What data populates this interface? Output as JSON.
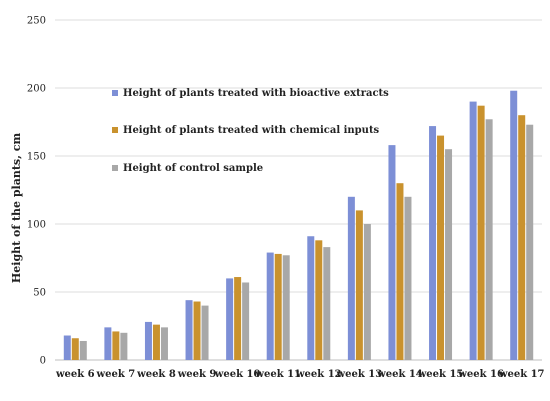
{
  "chart_data": {
    "type": "bar",
    "title": "",
    "xlabel": "",
    "ylabel": "Height of the plants, cm",
    "ylim": [
      0,
      250
    ],
    "yticks": [
      0,
      50,
      100,
      150,
      200,
      250
    ],
    "grid": true,
    "legend_position": "inside-top-left",
    "categories": [
      "week 6",
      "week 7",
      "week 8",
      "week 9",
      "week 10",
      "week 11",
      "week 12",
      "week 13",
      "week 14",
      "week 15",
      "week 16",
      "week 17"
    ],
    "series": [
      {
        "name": "Height of plants treated with bioactive extracts",
        "color": "#7d8fd6",
        "values": [
          18,
          24,
          28,
          44,
          60,
          79,
          91,
          120,
          158,
          172,
          190,
          198
        ]
      },
      {
        "name": "Height of plants treated with chemical inputs",
        "color": "#c9922e",
        "values": [
          16,
          21,
          26,
          43,
          61,
          78,
          88,
          110,
          130,
          165,
          187,
          180
        ]
      },
      {
        "name": "Height of control sample",
        "color": "#a8a8a8",
        "values": [
          14,
          20,
          24,
          40,
          57,
          77,
          83,
          100,
          120,
          155,
          177,
          173
        ]
      }
    ]
  }
}
